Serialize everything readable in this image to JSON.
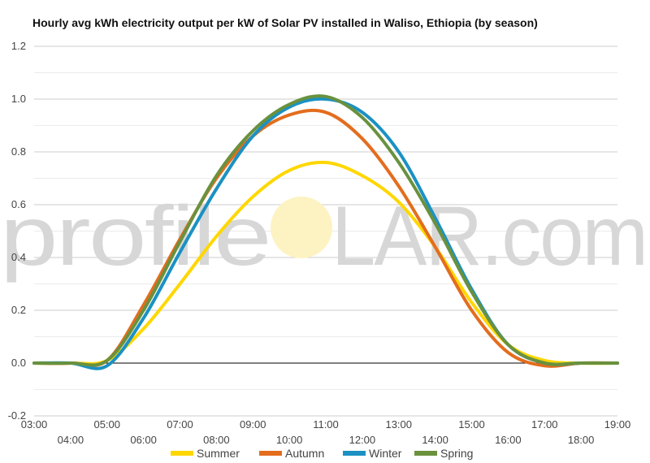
{
  "chart_data": {
    "type": "line",
    "title": "Hourly avg kWh electricity output per kW of Solar PV installed in Waliso, Ethiopia (by season)",
    "xlabel": "",
    "ylabel": "",
    "x": [
      "03:00",
      "04:00",
      "05:00",
      "06:00",
      "07:00",
      "08:00",
      "09:00",
      "10:00",
      "11:00",
      "12:00",
      "13:00",
      "14:00",
      "15:00",
      "16:00",
      "17:00",
      "18:00",
      "19:00"
    ],
    "ylim": [
      -0.2,
      1.2
    ],
    "yticks": [
      "-0.2",
      "0.0",
      "0.2",
      "0.4",
      "0.6",
      "0.8",
      "1.0",
      "1.2"
    ],
    "grid": true,
    "legend_position": "bottom",
    "series": [
      {
        "name": "Summer",
        "color": "#ffd700",
        "values": [
          0,
          0,
          0.01,
          0.13,
          0.3,
          0.48,
          0.63,
          0.73,
          0.76,
          0.71,
          0.61,
          0.44,
          0.23,
          0.07,
          0.01,
          0,
          0
        ]
      },
      {
        "name": "Autumn",
        "color": "#e36d1e",
        "values": [
          0,
          0,
          0.01,
          0.22,
          0.47,
          0.7,
          0.86,
          0.94,
          0.95,
          0.85,
          0.67,
          0.44,
          0.2,
          0.04,
          -0.01,
          0,
          0
        ]
      },
      {
        "name": "Winter",
        "color": "#1b91c3",
        "values": [
          0,
          0,
          -0.01,
          0.17,
          0.42,
          0.66,
          0.86,
          0.97,
          1.0,
          0.95,
          0.8,
          0.55,
          0.28,
          0.07,
          0,
          0,
          0
        ]
      },
      {
        "name": "Spring",
        "color": "#69913e",
        "values": [
          0,
          0,
          0.01,
          0.2,
          0.46,
          0.71,
          0.88,
          0.98,
          1.01,
          0.93,
          0.76,
          0.53,
          0.27,
          0.07,
          0,
          0,
          0
        ]
      }
    ]
  },
  "watermark": {
    "left": "profile",
    "right": "LAR.com"
  }
}
